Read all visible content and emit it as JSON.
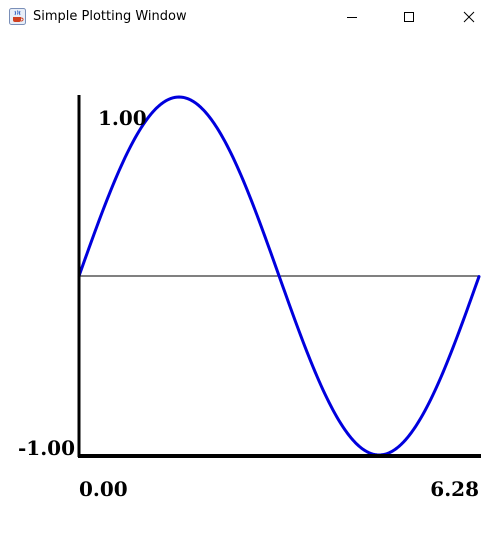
{
  "window": {
    "title": "Simple Plotting Window",
    "icon": "java-coffee-icon",
    "controls": [
      "minimize-icon",
      "maximize-icon",
      "close-icon"
    ]
  },
  "chart_data": {
    "type": "line",
    "function": "sin(x)",
    "series": [
      {
        "x": [
          0.0,
          0.3927,
          0.7854,
          1.1781,
          1.5708,
          1.9635,
          2.3562,
          2.7489,
          3.1416,
          3.5343,
          3.927,
          4.3197,
          4.7124,
          5.1051,
          5.4978,
          5.8905,
          6.2832
        ],
        "values": [
          0.0,
          0.3827,
          0.7071,
          0.9239,
          1.0,
          0.9239,
          0.7071,
          0.3827,
          0.0,
          -0.3827,
          -0.7071,
          -0.9239,
          -1.0,
          -0.9239,
          -0.7071,
          -0.3827,
          0.0
        ],
        "color": "#0000dd"
      }
    ],
    "xlim": [
      0.0,
      6.28
    ],
    "ylim": [
      -1.0,
      1.0
    ],
    "y_max_label": "1.00",
    "y_min_label": "-1.00",
    "x_min_label": "0.00",
    "x_max_label": "6.28",
    "zero_line": true,
    "grid": false,
    "axis_color": "#000000"
  }
}
